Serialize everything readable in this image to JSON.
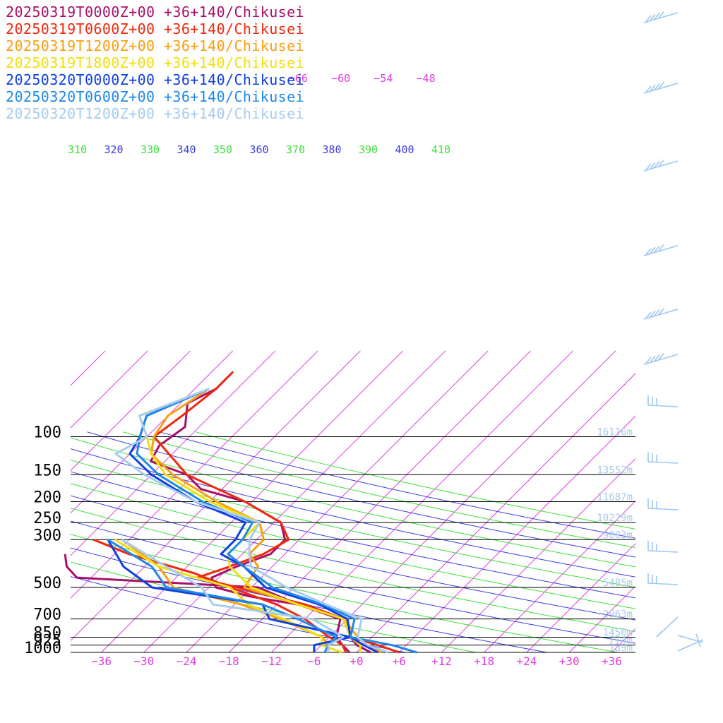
{
  "colors": {
    "isotherm": "#e040e0",
    "theta_blue": "#4040e0",
    "theta_green": "#40e040",
    "pressure_line": "#000000",
    "height_label": "#a8cbee",
    "wind_barb": "#9ec8f0"
  },
  "legend": [
    {
      "text": "20250319T0000Z+00 +36+140/Chikusei",
      "color": "#a8106a"
    },
    {
      "text": "20250319T0600Z+00 +36+140/Chikusei",
      "color": "#f02810"
    },
    {
      "text": "20250319T1200Z+00 +36+140/Chikusei",
      "color": "#f8a010"
    },
    {
      "text": "20250319T1800Z+00 +36+140/Chikusei",
      "color": "#f0e010"
    },
    {
      "text": "20250320T0000Z+00 +36+140/Chikusei",
      "color": "#1040e0"
    },
    {
      "text": "20250320T0600Z+00 +36+140/Chikusei",
      "color": "#2088e8"
    },
    {
      "text": "20250320T1200Z+00 +36+140/Chikusei",
      "color": "#a8ccf0"
    }
  ],
  "pressure_levels": [
    {
      "label": "100",
      "p": 100
    },
    {
      "label": "150",
      "p": 150
    },
    {
      "label": "200",
      "p": 200
    },
    {
      "label": "250",
      "p": 250
    },
    {
      "label": "300",
      "p": 300
    },
    {
      "label": "500",
      "p": 500
    },
    {
      "label": "700",
      "p": 700
    },
    {
      "label": "850",
      "p": 850
    },
    {
      "label": "925",
      "p": 925
    },
    {
      "label": "1000",
      "p": 1000
    }
  ],
  "height_labels": [
    {
      "p": 100,
      "text": "16116m"
    },
    {
      "p": 150,
      "text": "13552m"
    },
    {
      "p": 200,
      "text": "11687m"
    },
    {
      "p": 250,
      "text": "10229m"
    },
    {
      "p": 300,
      "text": "9003m"
    },
    {
      "p": 500,
      "text": "5485m"
    },
    {
      "p": 700,
      "text": "2963m"
    },
    {
      "p": 850,
      "text": "1450m"
    },
    {
      "p": 925,
      "text": "774m"
    },
    {
      "p": 1000,
      "text": "139m"
    }
  ],
  "x_ticks": [
    {
      "t": -36,
      "label": "−36"
    },
    {
      "t": -30,
      "label": "−30"
    },
    {
      "t": -24,
      "label": "−24"
    },
    {
      "t": -18,
      "label": "−18"
    },
    {
      "t": -12,
      "label": "−12"
    },
    {
      "t": -6,
      "label": "−6"
    },
    {
      "t": 0,
      "label": "+0"
    },
    {
      "t": 6,
      "label": "+6"
    },
    {
      "t": 12,
      "label": "+12"
    },
    {
      "t": 18,
      "label": "+18"
    },
    {
      "t": 24,
      "label": "+24"
    },
    {
      "t": 30,
      "label": "+30"
    },
    {
      "t": 36,
      "label": "+36"
    }
  ],
  "upper_isotherm_labels": [
    {
      "t": -66,
      "label": "−66"
    },
    {
      "t": -60,
      "label": "−60"
    },
    {
      "t": -54,
      "label": "−54"
    },
    {
      "t": -48,
      "label": "−48"
    }
  ],
  "theta_labels": [
    {
      "theta": 310,
      "label": "310",
      "color": "#40e040"
    },
    {
      "theta": 320,
      "label": "320",
      "color": "#4040e0"
    },
    {
      "theta": 330,
      "label": "330",
      "color": "#40e040"
    },
    {
      "theta": 340,
      "label": "340",
      "color": "#4040e0"
    },
    {
      "theta": 350,
      "label": "350",
      "color": "#40e040"
    },
    {
      "theta": 360,
      "label": "360",
      "color": "#4040e0"
    },
    {
      "theta": 370,
      "label": "370",
      "color": "#40e040"
    },
    {
      "theta": 380,
      "label": "380",
      "color": "#4040e0"
    },
    {
      "theta": 390,
      "label": "390",
      "color": "#40e040"
    },
    {
      "theta": 400,
      "label": "400",
      "color": "#4040e0"
    },
    {
      "theta": 410,
      "label": "410",
      "color": "#40e040"
    }
  ],
  "wind_barbs_count": 13,
  "chart_data": {
    "type": "line",
    "subtype": "skew-T log-P sounding",
    "xlabel": "",
    "ylabel": "",
    "xlim": [
      -42,
      42
    ],
    "ylim": [
      1000,
      100
    ],
    "grid": true,
    "legend_position": "top-left",
    "series": [
      {
        "name": "20250319T0000Z+00 +36+140/Chikusei",
        "kind": "temperature",
        "color": "#a8106a",
        "points": [
          [
            1000,
            2
          ],
          [
            925,
            -1
          ],
          [
            850,
            -3
          ],
          [
            700,
            -6.5
          ],
          [
            600,
            -15
          ],
          [
            550,
            -23
          ],
          [
            500,
            -29
          ],
          [
            450,
            -31
          ],
          [
            400,
            -29
          ],
          [
            350,
            -26
          ],
          [
            300,
            -26
          ],
          [
            250,
            -29
          ],
          [
            200,
            -37
          ],
          [
            175,
            -45
          ],
          [
            150,
            -49
          ],
          [
            130,
            -56
          ],
          [
            110,
            -57
          ],
          [
            90,
            -56
          ],
          [
            70,
            -59
          ],
          [
            60,
            -57
          ],
          [
            50,
            -57
          ]
        ]
      },
      {
        "name": "20250319T0000Z+00 +36+140/Chikusei",
        "kind": "dewpoint",
        "color": "#a8106a",
        "points": [
          [
            1000,
            -1
          ],
          [
            925,
            -3
          ],
          [
            850,
            -5
          ],
          [
            700,
            -7
          ],
          [
            600,
            -15
          ],
          [
            500,
            -23
          ],
          [
            450,
            -50
          ],
          [
            400,
            -53
          ],
          [
            350,
            -55
          ]
        ]
      },
      {
        "name": "20250319T0600Z+00 +36+140/Chikusei",
        "kind": "temperature",
        "color": "#f02810",
        "points": [
          [
            1000,
            6
          ],
          [
            925,
            2
          ],
          [
            850,
            -3
          ],
          [
            700,
            -6.5
          ],
          [
            600,
            -14
          ],
          [
            500,
            -26
          ],
          [
            450,
            -33
          ],
          [
            400,
            -30
          ],
          [
            350,
            -27
          ],
          [
            300,
            -25.5
          ],
          [
            250,
            -29
          ],
          [
            200,
            -37
          ],
          [
            150,
            -49
          ],
          [
            100,
            -59
          ],
          [
            80,
            -58
          ],
          [
            60,
            -57
          ],
          [
            50,
            -57
          ]
        ]
      },
      {
        "name": "20250319T0600Z+00 +36+140/Chikusei",
        "kind": "dewpoint",
        "color": "#f02810",
        "points": [
          [
            1000,
            -1.5
          ],
          [
            925,
            -3
          ],
          [
            850,
            -6
          ],
          [
            700,
            -12
          ],
          [
            600,
            -18
          ],
          [
            500,
            -27
          ],
          [
            430,
            -34
          ],
          [
            350,
            -46
          ],
          [
            300,
            -53
          ]
        ]
      },
      {
        "name": "20250319T1200Z+00 +36+140/Chikusei",
        "kind": "temperature",
        "color": "#f8a010",
        "points": [
          [
            1000,
            3.5
          ],
          [
            925,
            0.5
          ],
          [
            850,
            -2
          ],
          [
            700,
            -6.5
          ],
          [
            600,
            -15
          ],
          [
            500,
            -25
          ],
          [
            400,
            -26
          ],
          [
            350,
            -29
          ],
          [
            300,
            -29
          ],
          [
            250,
            -32
          ],
          [
            200,
            -41
          ],
          [
            150,
            -51
          ],
          [
            120,
            -57
          ],
          [
            100,
            -59
          ],
          [
            80,
            -60
          ],
          [
            60,
            -58
          ]
        ]
      },
      {
        "name": "20250319T1200Z+00 +36+140/Chikusei",
        "kind": "dewpoint",
        "color": "#f8a010",
        "points": [
          [
            1000,
            -4
          ],
          [
            925,
            -5
          ],
          [
            850,
            -7
          ],
          [
            700,
            -15.5
          ],
          [
            600,
            -23
          ],
          [
            500,
            -35
          ],
          [
            400,
            -40
          ],
          [
            300,
            -49
          ]
        ]
      },
      {
        "name": "20250319T1800Z+00 +36+140/Chikusei",
        "kind": "temperature",
        "color": "#f0e010",
        "points": [
          [
            1000,
            0.5
          ],
          [
            925,
            -0.5
          ],
          [
            850,
            -3
          ],
          [
            700,
            -6.5
          ],
          [
            600,
            -15
          ],
          [
            500,
            -24
          ],
          [
            400,
            -30
          ],
          [
            350,
            -32
          ],
          [
            300,
            -32
          ],
          [
            250,
            -32
          ],
          [
            200,
            -42
          ],
          [
            150,
            -52
          ],
          [
            120,
            -57
          ],
          [
            100,
            -60
          ],
          [
            80,
            -64
          ],
          [
            60,
            -58
          ]
        ]
      },
      {
        "name": "20250319T1800Z+00 +36+140/Chikusei",
        "kind": "dewpoint",
        "color": "#f0e010",
        "points": [
          [
            1000,
            -2
          ],
          [
            925,
            -6
          ],
          [
            850,
            -7
          ],
          [
            700,
            -15
          ],
          [
            600,
            -22
          ],
          [
            500,
            -27
          ],
          [
            400,
            -40
          ],
          [
            300,
            -50
          ]
        ]
      },
      {
        "name": "20250320T0000Z+00 +36+140/Chikusei",
        "kind": "temperature",
        "color": "#1040e0",
        "points": [
          [
            1000,
            3
          ],
          [
            925,
            0
          ],
          [
            850,
            -3
          ],
          [
            700,
            -6
          ],
          [
            600,
            -12
          ],
          [
            500,
            -22
          ],
          [
            400,
            -28
          ],
          [
            350,
            -33
          ],
          [
            300,
            -33
          ],
          [
            250,
            -34
          ],
          [
            200,
            -44
          ],
          [
            150,
            -54
          ],
          [
            120,
            -60
          ],
          [
            100,
            -61
          ],
          [
            80,
            -63
          ],
          [
            60,
            -58
          ]
        ]
      },
      {
        "name": "20250320T0000Z+00 +36+140/Chikusei",
        "kind": "dewpoint",
        "color": "#1040e0",
        "points": [
          [
            1000,
            -6
          ],
          [
            925,
            -7
          ],
          [
            850,
            -3
          ],
          [
            700,
            -17
          ],
          [
            600,
            -20
          ],
          [
            500,
            -38
          ],
          [
            400,
            -45
          ],
          [
            300,
            -51
          ]
        ]
      },
      {
        "name": "20250320T0600Z+00 +36+140/Chikusei",
        "kind": "temperature",
        "color": "#2088e8",
        "points": [
          [
            1000,
            8.5
          ],
          [
            925,
            4
          ],
          [
            850,
            -3
          ],
          [
            700,
            -5
          ],
          [
            600,
            -11.5
          ],
          [
            500,
            -21
          ],
          [
            400,
            -28
          ],
          [
            350,
            -32
          ],
          [
            300,
            -32
          ],
          [
            250,
            -33
          ],
          [
            200,
            -43
          ],
          [
            150,
            -53
          ],
          [
            120,
            -59
          ],
          [
            100,
            -61
          ],
          [
            80,
            -63
          ],
          [
            60,
            -58
          ]
        ]
      },
      {
        "name": "20250320T0600Z+00 +36+140/Chikusei",
        "kind": "dewpoint",
        "color": "#2088e8",
        "points": [
          [
            1000,
            -4.5
          ],
          [
            925,
            -5
          ],
          [
            850,
            -5
          ],
          [
            700,
            -13
          ],
          [
            600,
            -20
          ],
          [
            500,
            -36
          ],
          [
            400,
            -41
          ],
          [
            300,
            -51
          ]
        ]
      },
      {
        "name": "20250320T1200Z+00 +36+140/Chikusei",
        "kind": "temperature",
        "color": "#a8ccf0",
        "points": [
          [
            1000,
            4.5
          ],
          [
            925,
            0.5
          ],
          [
            850,
            -2
          ],
          [
            700,
            -4
          ],
          [
            600,
            -11
          ],
          [
            500,
            -19
          ],
          [
            400,
            -27
          ],
          [
            350,
            -29
          ],
          [
            300,
            -31
          ],
          [
            250,
            -32
          ],
          [
            200,
            -44
          ],
          [
            150,
            -55
          ],
          [
            120,
            -62
          ],
          [
            100,
            -60
          ],
          [
            80,
            -64
          ],
          [
            60,
            -58
          ]
        ]
      },
      {
        "name": "20250320T1200Z+00 +36+140/Chikusei",
        "kind": "dewpoint",
        "color": "#a8ccf0",
        "points": [
          [
            1000,
            -4
          ],
          [
            925,
            -5
          ],
          [
            850,
            -4
          ],
          [
            700,
            -11
          ],
          [
            600,
            -27
          ],
          [
            500,
            -31
          ],
          [
            400,
            -39
          ],
          [
            300,
            -49
          ]
        ]
      }
    ]
  }
}
